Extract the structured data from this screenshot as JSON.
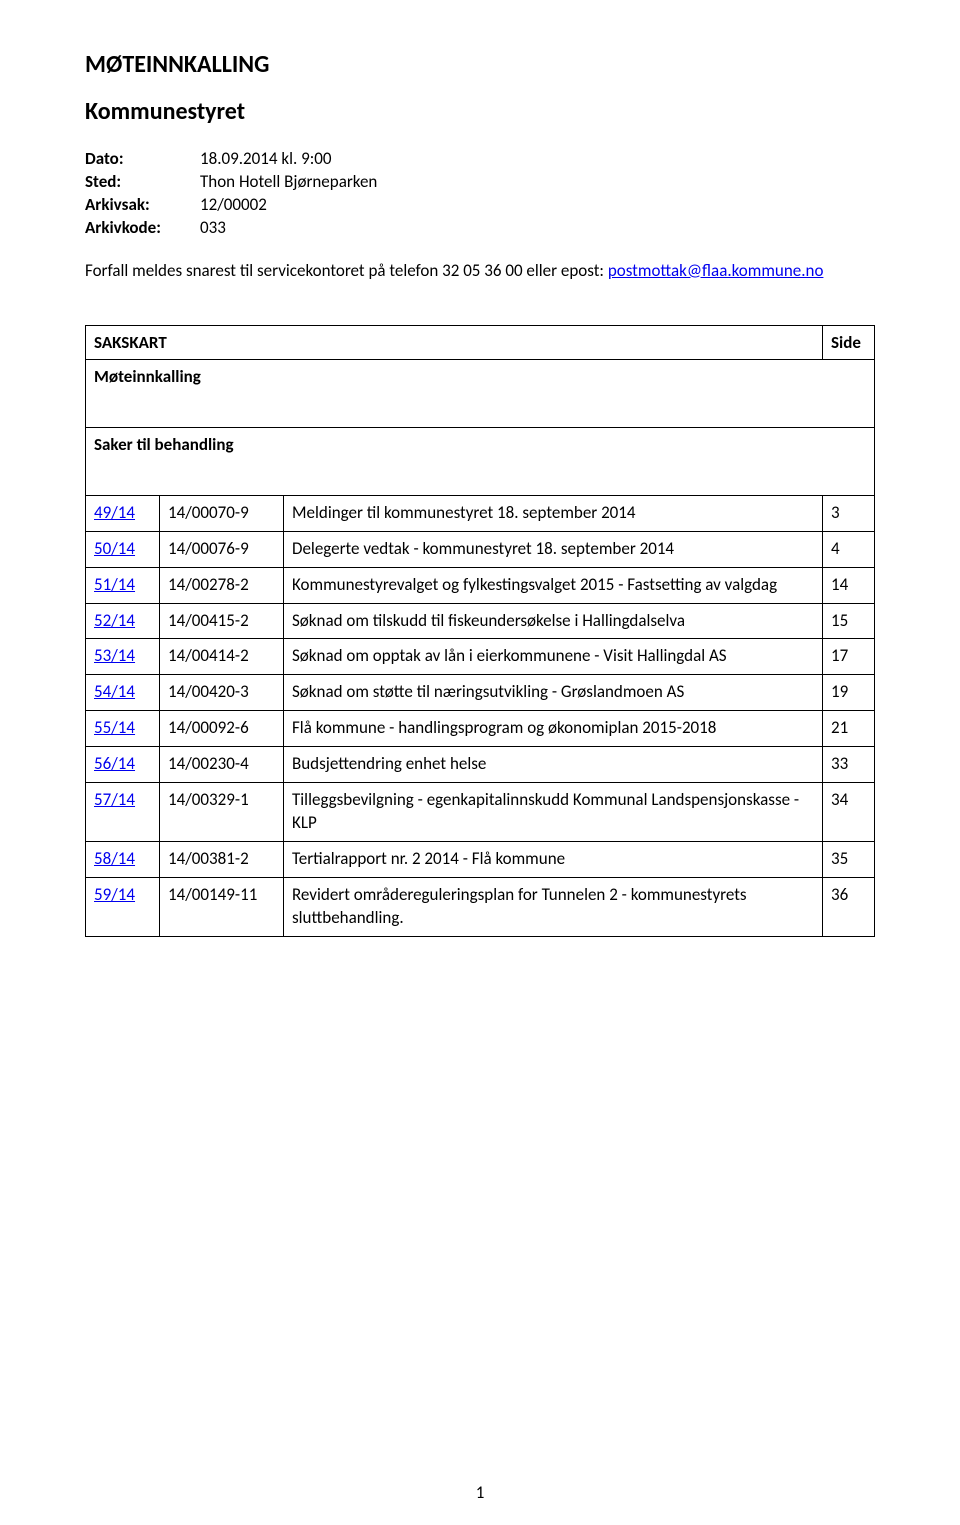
{
  "document": {
    "title": "MØTEINNKALLING",
    "subtitle": "Kommunestyret",
    "meta": {
      "dato_label": "Dato:",
      "dato_value": "18.09.2014 kl. 9:00",
      "sted_label": "Sted:",
      "sted_value": "Thon Hotell Bjørneparken",
      "arkivsak_label": "Arkivsak:",
      "arkivsak_value": "12/00002",
      "arkivkode_label": "Arkivkode:",
      "arkivkode_value": "033"
    },
    "forfall_text": "Forfall meldes snarest til servicekontoret på telefon 32 05 36 00 eller epost: ",
    "forfall_link": "postmottak@flaa.kommune.no",
    "table": {
      "header_left": "SAKSKART",
      "header_right": "Side",
      "section_møteinnkalling": "Møteinnkalling",
      "section_saker": "Saker til behandling",
      "rows": [
        {
          "num": "49/14",
          "ref": "14/00070-9",
          "desc": "Meldinger til kommunestyret 18. september 2014",
          "side": "3"
        },
        {
          "num": "50/14",
          "ref": "14/00076-9",
          "desc": "Delegerte vedtak - kommunestyret 18. september 2014",
          "side": "4"
        },
        {
          "num": "51/14",
          "ref": "14/00278-2",
          "desc": "Kommunestyrevalget og fylkestingsvalget 2015 - Fastsetting av valgdag",
          "side": "14"
        },
        {
          "num": "52/14",
          "ref": "14/00415-2",
          "desc": "Søknad om tilskudd til fiskeundersøkelse i Hallingdalselva",
          "side": "15"
        },
        {
          "num": "53/14",
          "ref": "14/00414-2",
          "desc": "Søknad om opptak av lån i eierkommunene - Visit Hallingdal AS",
          "side": "17"
        },
        {
          "num": "54/14",
          "ref": "14/00420-3",
          "desc": "Søknad om støtte til næringsutvikling - Grøslandmoen AS",
          "side": "19"
        },
        {
          "num": "55/14",
          "ref": "14/00092-6",
          "desc": "Flå kommune - handlingsprogram og økonomiplan 2015-2018",
          "side": "21"
        },
        {
          "num": "56/14",
          "ref": "14/00230-4",
          "desc": "Budsjettendring enhet helse",
          "side": "33"
        },
        {
          "num": "57/14",
          "ref": "14/00329-1",
          "desc": "Tilleggsbevilgning - egenkapitalinnskudd Kommunal Landspensjonskasse - KLP",
          "side": "34"
        },
        {
          "num": "58/14",
          "ref": "14/00381-2",
          "desc": "Tertialrapport nr. 2 2014 - Flå kommune",
          "side": "35"
        },
        {
          "num": "59/14",
          "ref": "14/00149-11",
          "desc": "Revidert områdereguleringsplan for Tunnelen 2 - kommunestyrets sluttbehandling.",
          "side": "36"
        }
      ]
    },
    "page_number": "1"
  },
  "style": {
    "link_color": "#0000ee",
    "text_color": "#000000",
    "background_color": "#ffffff",
    "border_color": "#000000",
    "title_fontsize": 24,
    "body_fontsize": 17,
    "font_family": "Calibri"
  }
}
